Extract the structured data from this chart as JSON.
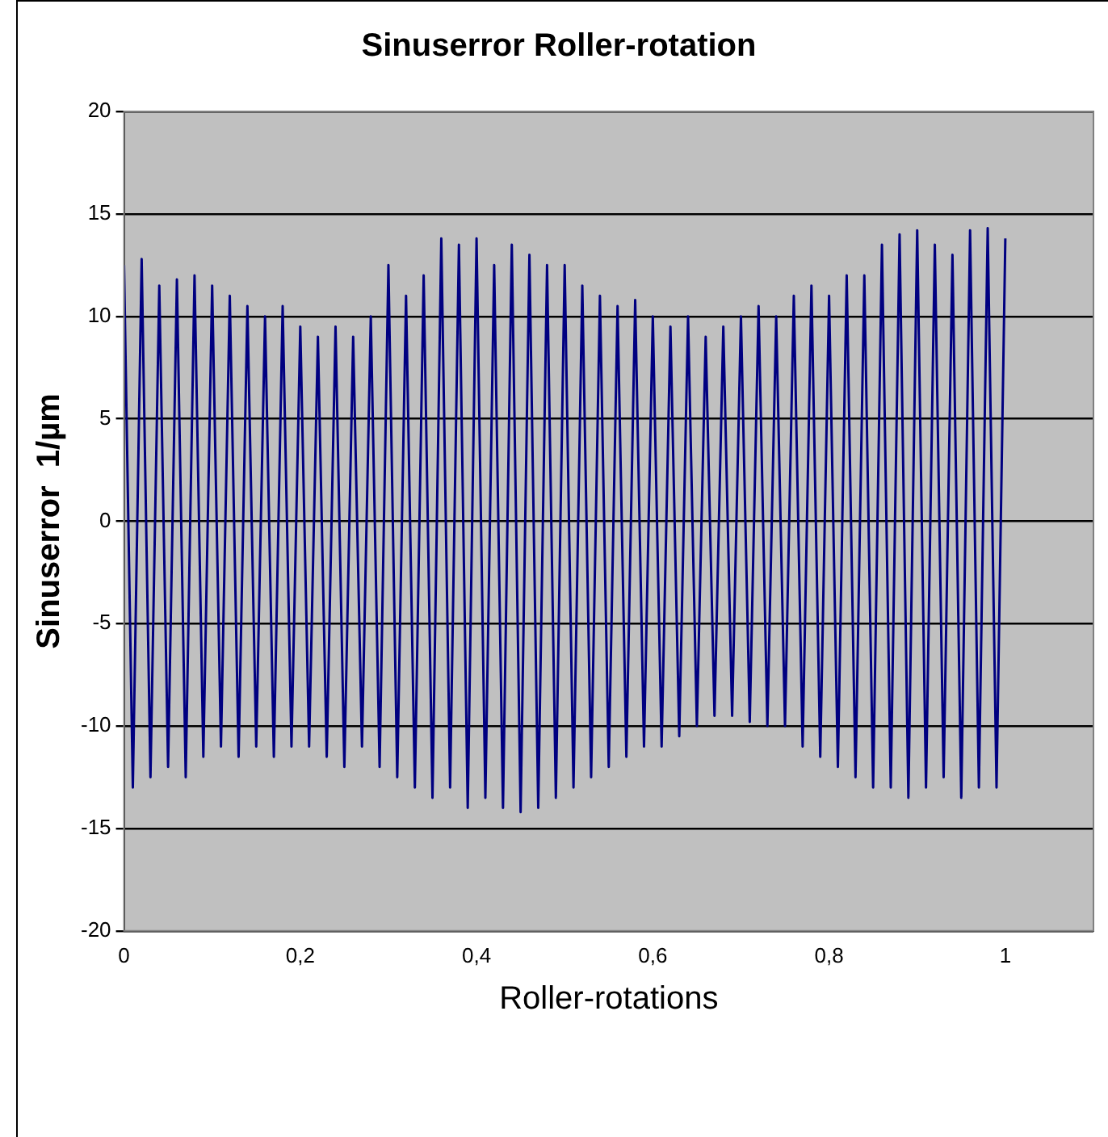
{
  "chart_data": {
    "type": "line",
    "title": "Sinuserror Roller-rotation",
    "xlabel": "Roller-rotations",
    "ylabel": "Sinuserror  1/µm",
    "x": [
      0,
      0.01,
      0.02,
      0.03,
      0.04,
      0.05,
      0.06,
      0.07,
      0.08,
      0.09,
      0.1,
      0.11,
      0.12,
      0.13,
      0.14,
      0.15,
      0.16,
      0.17,
      0.18,
      0.19,
      0.2,
      0.21,
      0.22,
      0.23,
      0.24,
      0.25,
      0.26,
      0.27,
      0.28,
      0.29,
      0.3,
      0.31,
      0.32,
      0.33,
      0.34,
      0.35,
      0.36,
      0.37,
      0.38,
      0.39,
      0.4,
      0.41,
      0.42,
      0.43,
      0.44,
      0.45,
      0.46,
      0.47,
      0.48,
      0.49,
      0.5,
      0.51,
      0.52,
      0.53,
      0.54,
      0.55,
      0.56,
      0.57,
      0.58,
      0.59,
      0.6,
      0.61,
      0.62,
      0.63,
      0.64,
      0.65,
      0.66,
      0.67,
      0.68,
      0.69,
      0.7,
      0.71,
      0.72,
      0.73,
      0.74,
      0.75,
      0.76,
      0.77,
      0.78,
      0.79,
      0.8,
      0.81,
      0.82,
      0.83,
      0.84,
      0.85,
      0.86,
      0.87,
      0.88,
      0.89,
      0.9,
      0.91,
      0.92,
      0.93,
      0.94,
      0.95,
      0.96,
      0.97,
      0.98,
      0.99,
      1
    ],
    "series": [
      {
        "color": "#000080",
        "values": [
          12.5,
          -13,
          12.8,
          -12.5,
          11.5,
          -12,
          11.8,
          -12.5,
          12,
          -11.5,
          11.5,
          -11,
          11,
          -11.5,
          10.5,
          -11,
          10,
          -11.5,
          10.5,
          -11,
          9.5,
          -11,
          9,
          -11.5,
          9.5,
          -12,
          9,
          -11,
          10,
          -12,
          12.5,
          -12.5,
          11,
          -13,
          12,
          -13.5,
          13.8,
          -13,
          13.5,
          -14,
          13.8,
          -13.5,
          12.5,
          -14,
          13.5,
          -14.2,
          13,
          -14,
          12.5,
          -13.5,
          12.5,
          -13,
          11.5,
          -12.5,
          11,
          -12,
          10.5,
          -11.5,
          10.8,
          -11,
          10,
          -11,
          9.5,
          -10.5,
          10,
          -10,
          9,
          -9.5,
          9.5,
          -9.5,
          10,
          -9.8,
          10.5,
          -10,
          10,
          -10,
          11,
          -11,
          11.5,
          -11.5,
          11,
          -12,
          12,
          -12.5,
          12,
          -13,
          13.5,
          -13,
          14,
          -13.5,
          14.2,
          -13,
          13.5,
          -12.5,
          13,
          -13.5,
          14.2,
          -13,
          14.3,
          -13,
          13.8
        ]
      }
    ],
    "xlim": [
      0,
      1.1
    ],
    "xticks": [
      {
        "value": 0,
        "label": "0"
      },
      {
        "value": 0.2,
        "label": "0,2"
      },
      {
        "value": 0.4,
        "label": "0,4"
      },
      {
        "value": 0.6,
        "label": "0,6"
      },
      {
        "value": 0.8,
        "label": "0,8"
      },
      {
        "value": 1,
        "label": "1"
      }
    ],
    "ylim": [
      -20,
      20
    ],
    "yticks": [
      -20,
      -15,
      -10,
      -5,
      0,
      5,
      10,
      15,
      20
    ],
    "grid": "y",
    "marker": "none",
    "line_style": "solid",
    "legend": false
  }
}
